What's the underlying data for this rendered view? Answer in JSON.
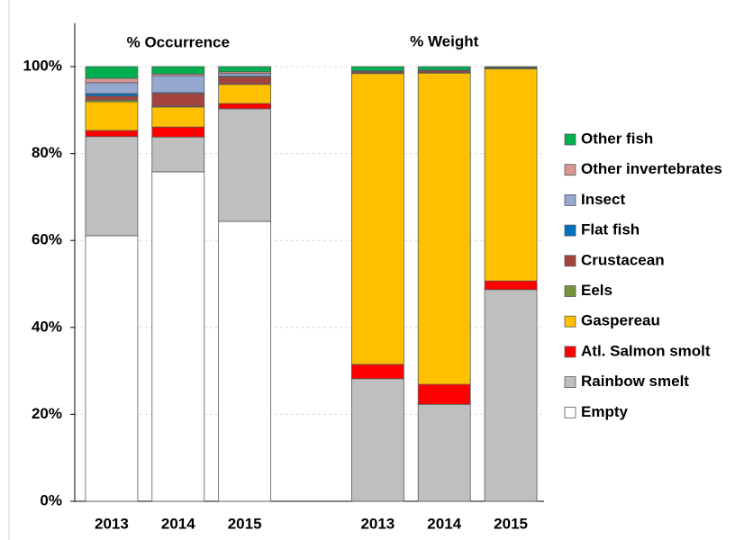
{
  "chart_data": {
    "type": "bar",
    "stacked": true,
    "annotations": [
      "% Occurrence",
      "% Weight"
    ],
    "categories": [
      "2013",
      "2014",
      "2015",
      null,
      "2013",
      "2014",
      "2015"
    ],
    "series": [
      {
        "name": "Empty",
        "color": "#ffffff",
        "values": [
          61.1,
          75.8,
          64.4,
          null,
          0,
          0,
          0
        ]
      },
      {
        "name": "Rainbow smelt",
        "color": "#bfbfbf",
        "values": [
          22.8,
          8.0,
          25.9,
          null,
          28.2,
          22.3,
          48.7
        ]
      },
      {
        "name": "Atl. Salmon smolt",
        "color": "#ff0000",
        "values": [
          1.4,
          2.3,
          1.2,
          null,
          3.3,
          4.6,
          2.0
        ]
      },
      {
        "name": "Gaspereau",
        "color": "#ffc000",
        "values": [
          6.6,
          4.6,
          4.4,
          null,
          66.9,
          71.6,
          48.8
        ]
      },
      {
        "name": "Eels",
        "color": "#77933c",
        "values": [
          0.4,
          0.2,
          0.1,
          null,
          0.2,
          0.1,
          0.1
        ]
      },
      {
        "name": "Crustacean",
        "color": "#a5443f",
        "values": [
          0.9,
          2.9,
          1.6,
          null,
          0.3,
          0.4,
          0.2
        ]
      },
      {
        "name": "Flat fish",
        "color": "#0070c0",
        "values": [
          0.6,
          0.2,
          0.2,
          null,
          0,
          0,
          0
        ]
      },
      {
        "name": "Insect",
        "color": "#95a8d0",
        "values": [
          2.5,
          3.9,
          0.6,
          null,
          0.1,
          0.2,
          0
        ]
      },
      {
        "name": "Other invertebrates",
        "color": "#d99594",
        "values": [
          1.0,
          0.4,
          0.4,
          null,
          0,
          0,
          0
        ]
      },
      {
        "name": "Other fish",
        "color": "#00b050",
        "values": [
          2.7,
          1.7,
          1.2,
          null,
          1.0,
          0.8,
          0.2
        ]
      }
    ],
    "ylim": [
      0,
      110
    ],
    "yticks": [
      {
        "value": 0,
        "label": "0%"
      },
      {
        "value": 20,
        "label": "20%"
      },
      {
        "value": 40,
        "label": "40%"
      },
      {
        "value": 60,
        "label": "60%"
      },
      {
        "value": 80,
        "label": "80%"
      },
      {
        "value": 100,
        "label": "100%"
      }
    ],
    "grid": true,
    "legend": "right"
  }
}
